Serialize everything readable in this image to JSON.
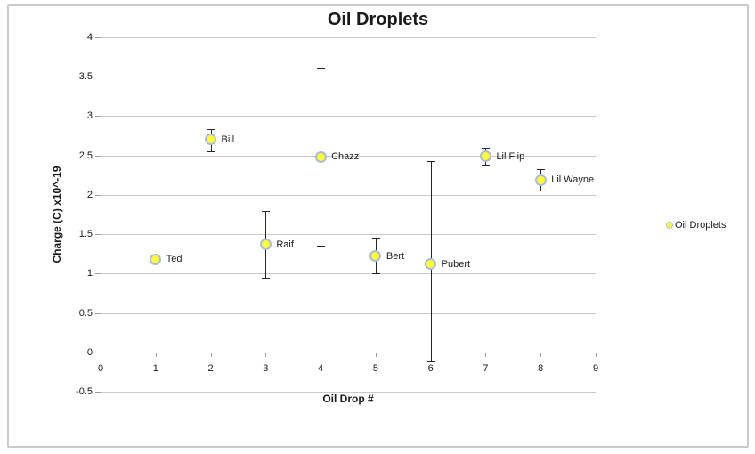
{
  "chart_data": {
    "type": "scatter",
    "title": "Oil Droplets",
    "xlabel": "Oil Drop #",
    "ylabel": "Charge (C) x10^-19",
    "xlim": [
      0,
      9
    ],
    "ylim": [
      -0.5,
      4
    ],
    "grid": "horizontal-only",
    "x_ticks": [
      {
        "v": 0,
        "label": "0"
      },
      {
        "v": 1,
        "label": "1"
      },
      {
        "v": 2,
        "label": "2"
      },
      {
        "v": 3,
        "label": "3"
      },
      {
        "v": 4,
        "label": "4"
      },
      {
        "v": 5,
        "label": "5"
      },
      {
        "v": 6,
        "label": "6"
      },
      {
        "v": 7,
        "label": "7"
      },
      {
        "v": 8,
        "label": "8"
      },
      {
        "v": 9,
        "label": "9"
      }
    ],
    "y_ticks": [
      {
        "v": 4,
        "label": "4"
      },
      {
        "v": 3.5,
        "label": "3.5"
      },
      {
        "v": 3,
        "label": "3"
      },
      {
        "v": 2.5,
        "label": "2.5"
      },
      {
        "v": 2,
        "label": "2"
      },
      {
        "v": 1.5,
        "label": "1.5"
      },
      {
        "v": 1,
        "label": "1"
      },
      {
        "v": 0.5,
        "label": "0.5"
      },
      {
        "v": 0,
        "label": "0"
      },
      {
        "v": -0.5,
        "label": "-0.5"
      }
    ],
    "legend": {
      "label": "Oil Droplets",
      "position": "right"
    },
    "series": [
      {
        "name": "Oil Droplets",
        "points": [
          {
            "label": "Ted",
            "x": 1,
            "y": 1.18
          },
          {
            "label": "Bill",
            "x": 2,
            "y": 2.7,
            "err_lo": 2.55,
            "err_hi": 2.84
          },
          {
            "label": "Raif",
            "x": 3,
            "y": 1.37,
            "err_lo": 0.95,
            "err_hi": 1.8
          },
          {
            "label": "Chazz",
            "x": 4,
            "y": 2.48,
            "err_lo": 1.35,
            "err_hi": 3.62
          },
          {
            "label": "Bert",
            "x": 5,
            "y": 1.22,
            "err_lo": 1.0,
            "err_hi": 1.46
          },
          {
            "label": "Pubert",
            "x": 6,
            "y": 1.12,
            "err_lo": -0.12,
            "err_hi": 2.43
          },
          {
            "label": "Lil Flip",
            "x": 7,
            "y": 2.49,
            "err_lo": 2.38,
            "err_hi": 2.6
          },
          {
            "label": "Lil Wayne",
            "x": 8,
            "y": 2.19,
            "err_lo": 2.06,
            "err_hi": 2.33
          }
        ]
      }
    ]
  },
  "colors": {
    "marker_fill": "#FFFF33",
    "marker_stroke": "#A9BCDB",
    "error_bar": "#262626",
    "gridline": "#C9C9C9",
    "axis_line": "#9C9C9C",
    "text": "#1A1A1A",
    "frame_border": "#CACACA"
  }
}
